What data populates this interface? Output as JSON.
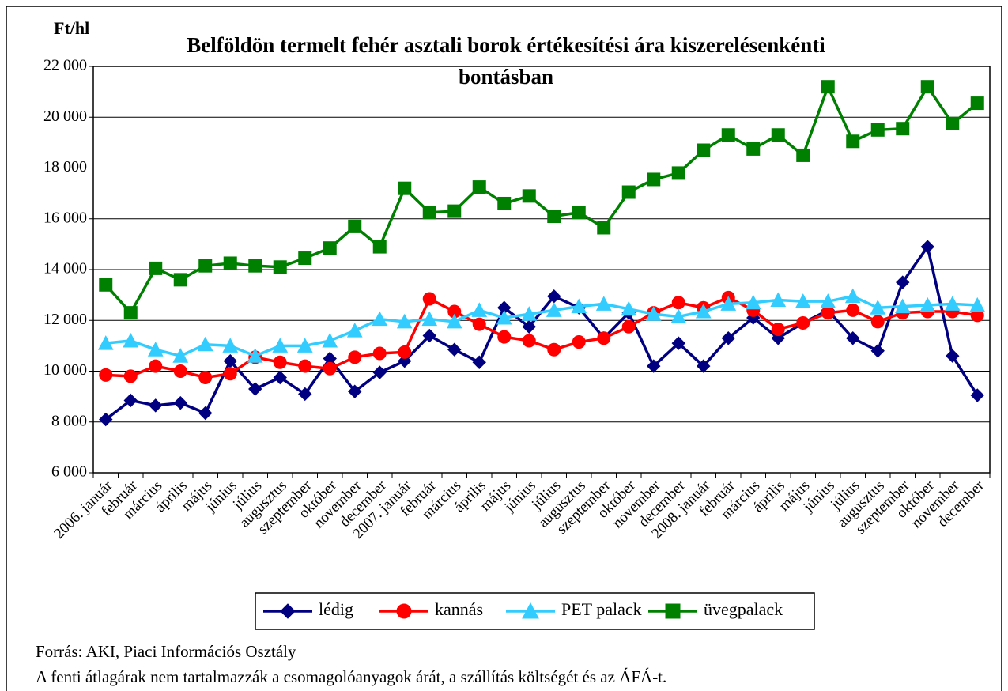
{
  "chart_data": {
    "type": "line",
    "title": [
      "Belföldön termelt fehér asztali borok értékesítési ára kiszerelésenkénti",
      "bontásban"
    ],
    "y_label": "Ft/hl",
    "categories": [
      "2006. január",
      "február",
      "március",
      "április",
      "május",
      "június",
      "július",
      "augusztus",
      "szeptember",
      "október",
      "november",
      "december",
      "2007. január",
      "február",
      "március",
      "április",
      "május",
      "június",
      "július",
      "augusztus",
      "szeptember",
      "október",
      "november",
      "december",
      "2008. január",
      "február",
      "március",
      "április",
      "május",
      "június",
      "július",
      "augusztus",
      "szeptember",
      "október",
      "november",
      "december"
    ],
    "series": [
      {
        "name": "lédig",
        "color": "#000080",
        "marker": "diamond",
        "values": [
          8100,
          8850,
          8650,
          8750,
          8350,
          10400,
          9300,
          9750,
          9100,
          10500,
          9200,
          9950,
          10400,
          11400,
          10850,
          10350,
          12500,
          11750,
          12950,
          12500,
          11300,
          12300,
          10200,
          11100,
          10200,
          11300,
          12100,
          11300,
          11900,
          12400,
          11300,
          10800,
          13500,
          14900,
          10600,
          9050
        ]
      },
      {
        "name": "kannás",
        "color": "#ff0000",
        "marker": "circle",
        "values": [
          9850,
          9800,
          10200,
          10000,
          9750,
          9900,
          10550,
          10350,
          10200,
          10100,
          10550,
          10700,
          10750,
          12850,
          12350,
          11850,
          11350,
          11200,
          10850,
          11150,
          11300,
          11750,
          12300,
          12700,
          12500,
          12900,
          12400,
          11650,
          11900,
          12300,
          12400,
          11950,
          12300,
          12350,
          12350,
          12200
        ]
      },
      {
        "name": "PET palack",
        "color": "#33ccff",
        "marker": "triangle",
        "values": [
          11100,
          11200,
          10850,
          10600,
          11050,
          11000,
          10600,
          11000,
          11000,
          11200,
          11600,
          12050,
          11950,
          12050,
          11950,
          12400,
          12100,
          12250,
          12400,
          12550,
          12650,
          12450,
          12250,
          12150,
          12350,
          12650,
          12700,
          12800,
          12750,
          12750,
          12950,
          12500,
          12550,
          12600,
          12650,
          12600
        ]
      },
      {
        "name": "üvegpalack",
        "color": "#008000",
        "marker": "square",
        "values": [
          13400,
          12300,
          14050,
          13600,
          14150,
          14250,
          14150,
          14100,
          14450,
          14850,
          15700,
          14900,
          17200,
          16250,
          16300,
          17250,
          16600,
          16900,
          16100,
          16250,
          15650,
          17050,
          17550,
          17800,
          18700,
          19300,
          18750,
          19300,
          18500,
          21200,
          19050,
          19500,
          19550,
          21200,
          19750,
          20550
        ]
      }
    ],
    "ylim": [
      6000,
      22000
    ],
    "yticks": [
      {
        "value": 6000,
        "label": "6 000"
      },
      {
        "value": 8000,
        "label": "8 000"
      },
      {
        "value": 10000,
        "label": "10 000"
      },
      {
        "value": 12000,
        "label": "12 000"
      },
      {
        "value": 14000,
        "label": "14 000"
      },
      {
        "value": 16000,
        "label": "16 000"
      },
      {
        "value": 18000,
        "label": "18 000"
      },
      {
        "value": 20000,
        "label": "20 000"
      },
      {
        "value": 22000,
        "label": "22 000"
      }
    ],
    "grid": true,
    "legend": "bottom",
    "notes": [
      "Forrás: AKI, Piaci Információs Osztály",
      "A fenti átlagárak nem tartalmazzák a csomagolóanyagok árát, a szállítás költségét és az ÁFÁ-t."
    ]
  }
}
